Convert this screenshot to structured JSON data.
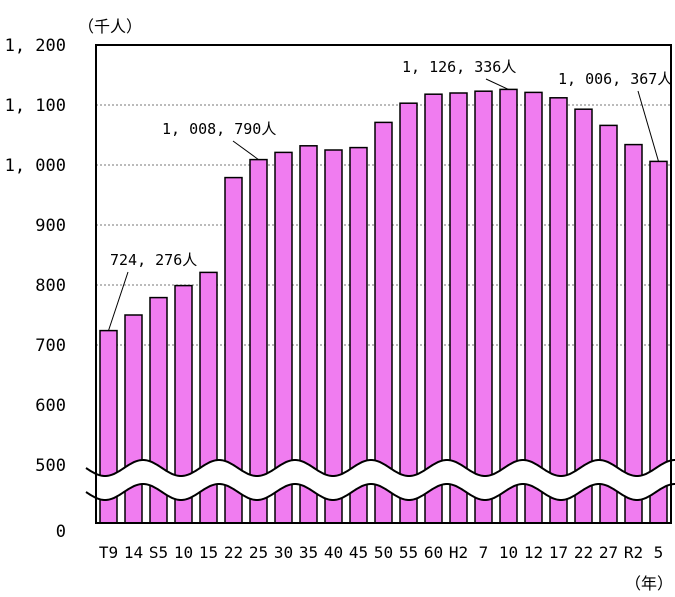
{
  "chart_data": {
    "type": "bar",
    "y_unit_label": "（千人）",
    "x_unit_label": "（年）",
    "categories": [
      "T9",
      "14",
      "S5",
      "10",
      "15",
      "22",
      "25",
      "30",
      "35",
      "40",
      "45",
      "50",
      "55",
      "60",
      "H2",
      "7",
      "10",
      "12",
      "17",
      "22",
      "27",
      "R2",
      "5"
    ],
    "values": [
      724,
      750,
      779,
      799,
      821,
      979,
      1009,
      1021,
      1032,
      1025,
      1029,
      1071,
      1103,
      1118,
      1120,
      1123,
      1126,
      1121,
      1112,
      1093,
      1066,
      1034,
      1006
    ],
    "y_ticks": [
      "0",
      "500",
      "600",
      "700",
      "800",
      "900",
      "1, 000",
      "1, 100",
      "1, 200"
    ],
    "ylim": [
      500,
      1200
    ],
    "axis_break": "between 0 and 500",
    "grid": "horizontal dashed at 700, 800, 900, 1000, 1100",
    "bar_color": "#f07cf0",
    "annotations": [
      {
        "text": "724, 276人",
        "category_index": 0
      },
      {
        "text": "1, 008, 790人",
        "category_index": 6
      },
      {
        "text": "1, 126, 336人",
        "category_index": 16
      },
      {
        "text": "1, 006, 367人",
        "category_index": 22
      }
    ]
  }
}
